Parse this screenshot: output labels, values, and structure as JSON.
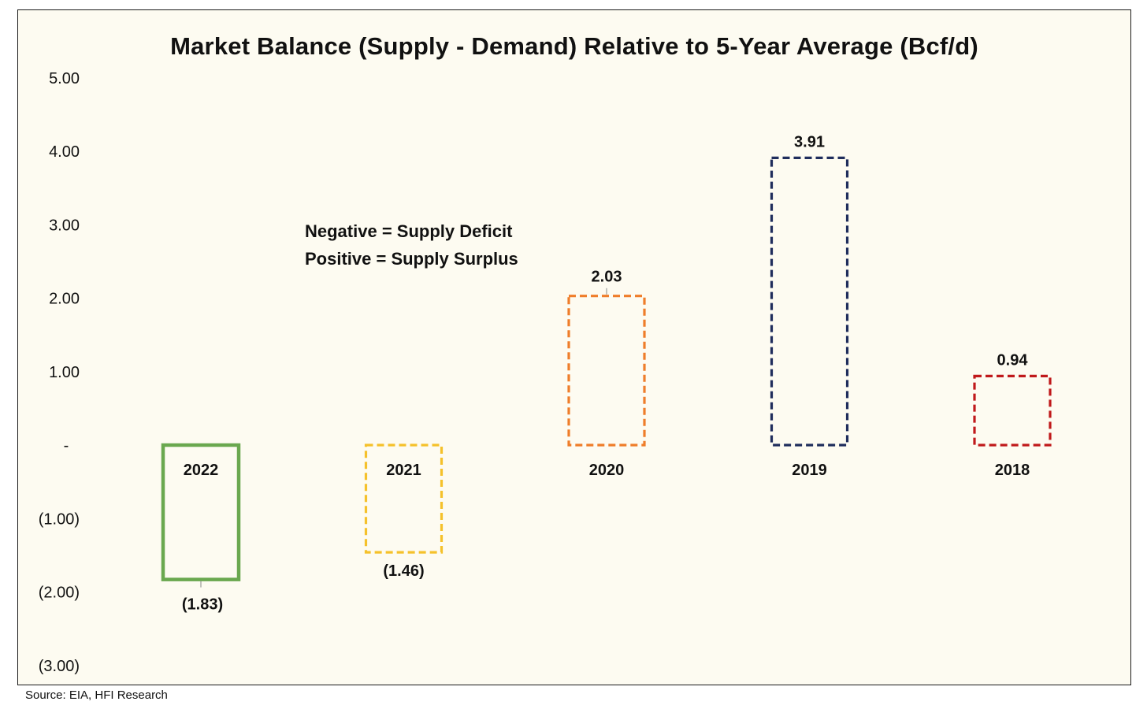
{
  "source": "Source: EIA, HFI Research",
  "annotation": {
    "line1": "Negative = Supply Deficit",
    "line2": "Positive = Supply Surplus"
  },
  "colors": {
    "background": "#fdfbf1",
    "text": "#111111"
  },
  "chart_data": {
    "type": "bar",
    "title": "Market Balance (Supply - Demand) Relative to 5-Year Average (Bcf/d)",
    "xlabel": "",
    "ylabel": "",
    "ylim": [
      -3,
      5
    ],
    "grid": false,
    "legend": "none",
    "y_ticks": [
      {
        "value": 5,
        "label": "5.00"
      },
      {
        "value": 4,
        "label": "4.00"
      },
      {
        "value": 3,
        "label": "3.00"
      },
      {
        "value": 2,
        "label": "2.00"
      },
      {
        "value": 1,
        "label": "1.00"
      },
      {
        "value": 0,
        "label": "-"
      },
      {
        "value": -1,
        "label": "(1.00)"
      },
      {
        "value": -2,
        "label": "(2.00)"
      },
      {
        "value": -3,
        "label": "(3.00)"
      }
    ],
    "categories": [
      "2022",
      "2021",
      "2020",
      "2019",
      "2018"
    ],
    "values": [
      -1.83,
      -1.46,
      2.03,
      3.91,
      0.94
    ],
    "data_labels": [
      "(1.83)",
      "(1.46)",
      "2.03",
      "3.91",
      "0.94"
    ],
    "bar_styles": [
      {
        "color": "#6aa84f",
        "line": "solid"
      },
      {
        "color": "#f5c12b",
        "line": "dashed"
      },
      {
        "color": "#ef7d2a",
        "line": "dashed"
      },
      {
        "color": "#1f2d5c",
        "line": "dashed"
      },
      {
        "color": "#c0191b",
        "line": "dashed"
      }
    ]
  }
}
